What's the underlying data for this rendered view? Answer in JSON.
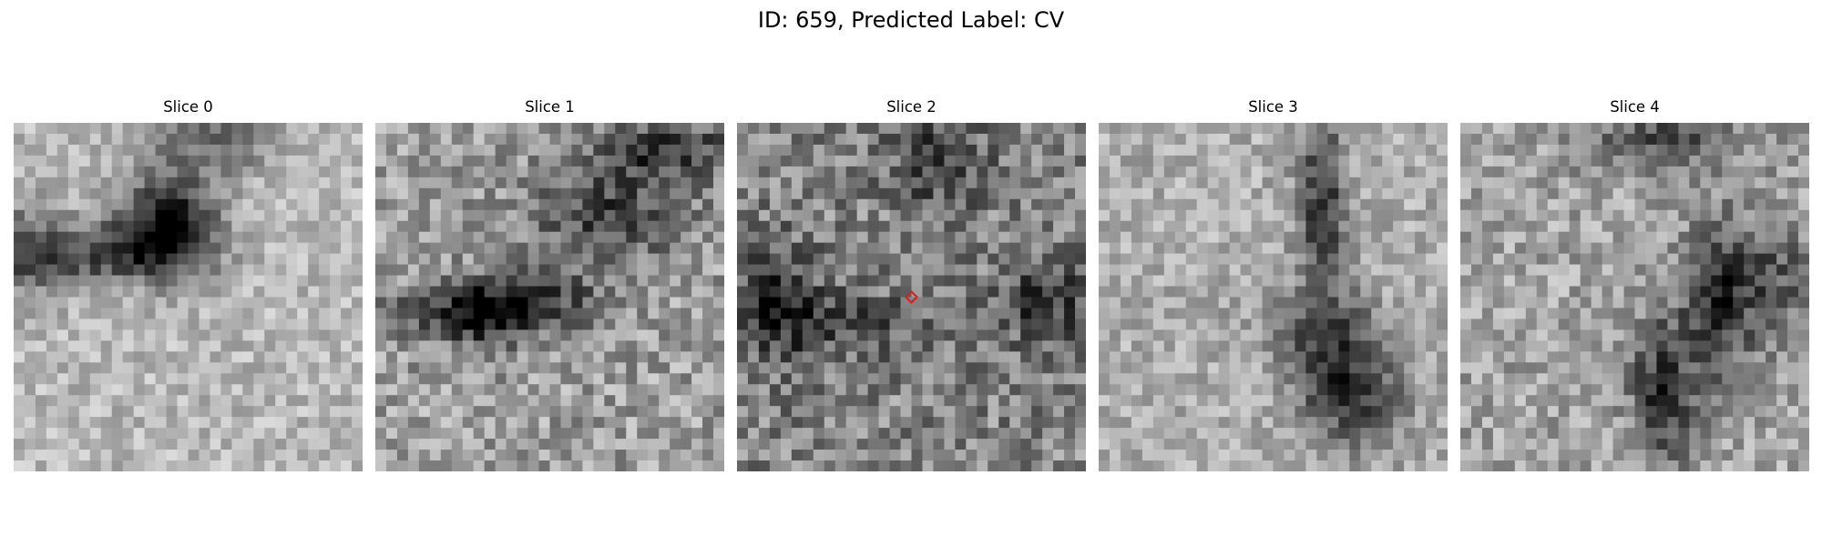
{
  "title": "ID: 659, Predicted Label: CV",
  "colormap": "gray",
  "marker_color": "#e41a1c",
  "panels": [
    {
      "label": "Slice 0",
      "has_marker": false
    },
    {
      "label": "Slice 1",
      "has_marker": false
    },
    {
      "label": "Slice 2",
      "has_marker": true
    },
    {
      "label": "Slice 3",
      "has_marker": false
    },
    {
      "label": "Slice 4",
      "has_marker": false
    }
  ]
}
